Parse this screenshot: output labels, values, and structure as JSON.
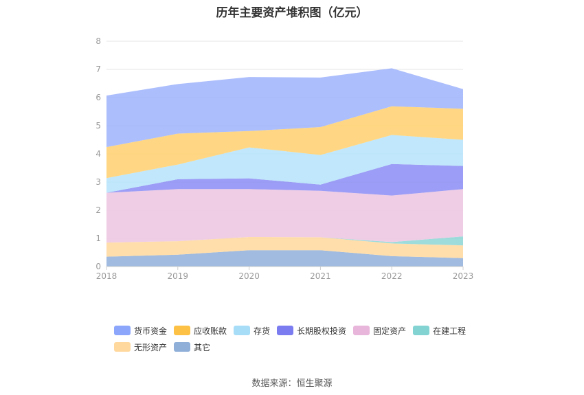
{
  "chart_data": {
    "type": "area",
    "stacked": true,
    "title": "历年主要资产堆积图（亿元）",
    "categories": [
      "2018",
      "2019",
      "2020",
      "2021",
      "2022",
      "2023"
    ],
    "ylim": [
      0,
      8
    ],
    "yticks": [
      0,
      1,
      2,
      3,
      4,
      5,
      6,
      7,
      8
    ],
    "grid": true,
    "legend_position": "bottom",
    "series": [
      {
        "name": "其它",
        "color": "#8fafd9",
        "values": [
          0.35,
          0.42,
          0.58,
          0.58,
          0.37,
          0.3
        ]
      },
      {
        "name": "无形资产",
        "color": "#ffd89e",
        "values": [
          0.5,
          0.48,
          0.47,
          0.46,
          0.45,
          0.45
        ]
      },
      {
        "name": "在建工程",
        "color": "#8dd6d6",
        "values": [
          0.0,
          0.0,
          0.0,
          0.0,
          0.05,
          0.32
        ]
      },
      {
        "name": "固定资产",
        "color": "#ecc5e1",
        "values": [
          1.77,
          1.85,
          1.7,
          1.65,
          1.65,
          1.68
        ]
      },
      {
        "name": "长期股权投资",
        "color": "#8b8cf5",
        "values": [
          0.0,
          0.35,
          0.38,
          0.22,
          1.12,
          0.82
        ]
      },
      {
        "name": "存货",
        "color": "#b5e3fa",
        "values": [
          0.52,
          0.52,
          1.1,
          1.05,
          1.03,
          0.93
        ]
      },
      {
        "name": "应收账款",
        "color": "#ffd06e",
        "values": [
          1.1,
          1.1,
          0.58,
          0.99,
          1.02,
          1.1
        ]
      },
      {
        "name": "货币资金",
        "color": "#9db3fb",
        "values": [
          1.83,
          1.76,
          1.92,
          1.76,
          1.35,
          0.7
        ]
      }
    ],
    "source": "数据来源：恒生聚源"
  },
  "legend": {
    "items": [
      {
        "name": "货币资金",
        "color": "#8ba6fb"
      },
      {
        "name": "应收账款",
        "color": "#fdc245"
      },
      {
        "name": "存货",
        "color": "#a8ddf8"
      },
      {
        "name": "长期股权投资",
        "color": "#7b7cf0"
      },
      {
        "name": "固定资产",
        "color": "#e8b6da"
      },
      {
        "name": "在建工程",
        "color": "#84d3d3"
      },
      {
        "name": "无形资产",
        "color": "#ffd89e"
      },
      {
        "name": "其它",
        "color": "#8fafd9"
      }
    ]
  }
}
